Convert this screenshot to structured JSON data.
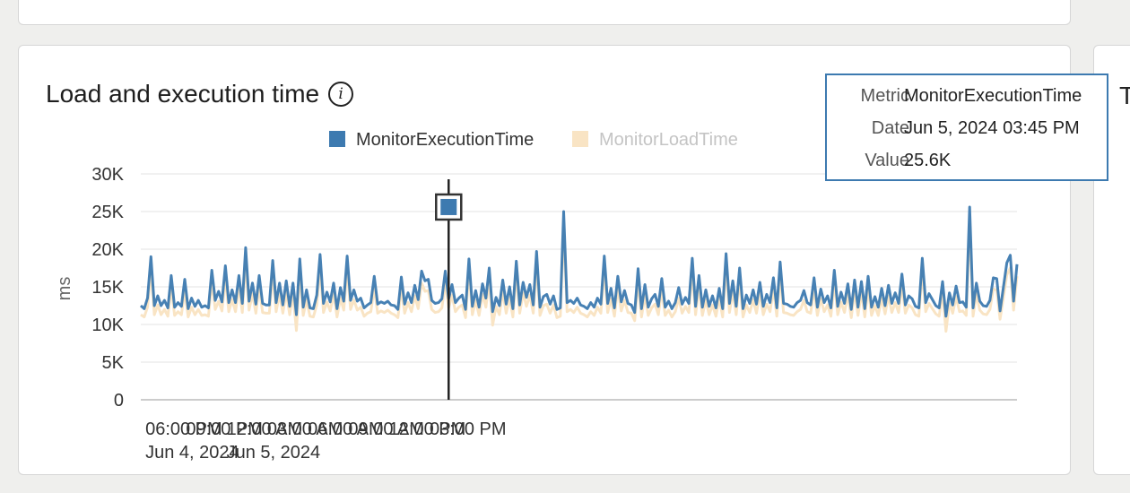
{
  "card": {
    "title": "Load and execution time",
    "info_icon": "info-icon",
    "right_card_peek": "T"
  },
  "tooltip": {
    "rows": [
      {
        "key": "Metric",
        "value": "MonitorExecutionTime"
      },
      {
        "key": "Date",
        "value": "Jun 5, 2024 03:45 PM"
      },
      {
        "key": "Value",
        "value": "25.6K"
      }
    ]
  },
  "chart_data": {
    "type": "line",
    "ylabel": "ms",
    "ylim": [
      0,
      30000
    ],
    "y_ticks": [
      0,
      5000,
      10000,
      15000,
      20000,
      25000,
      30000
    ],
    "y_tick_labels": [
      "0",
      "5K",
      "10K",
      "15K",
      "20K",
      "25K",
      "30K"
    ],
    "x_start": "2024-06-04T17:00",
    "x_interval_minutes": 15,
    "x_ticks": [
      {
        "time": "2024-06-04T18:00",
        "label": "06:00 PM",
        "sublabel": "Jun 4, 2024"
      },
      {
        "time": "2024-06-04T21:00",
        "label": "09:00 PM",
        "sublabel": ""
      },
      {
        "time": "2024-06-05T00:00",
        "label": "12:00 AM",
        "sublabel": "Jun 5, 2024"
      },
      {
        "time": "2024-06-05T03:00",
        "label": "03:00 AM",
        "sublabel": ""
      },
      {
        "time": "2024-06-05T06:00",
        "label": "06:00 AM",
        "sublabel": ""
      },
      {
        "time": "2024-06-05T09:00",
        "label": "09:00 AM",
        "sublabel": ""
      },
      {
        "time": "2024-06-05T12:00",
        "label": "12:00 PM",
        "sublabel": ""
      },
      {
        "time": "2024-06-05T15:00",
        "label": "03:00 PM",
        "sublabel": ""
      }
    ],
    "legend_position": "top-center",
    "grid": true,
    "highlight": {
      "series": "MonitorExecutionTime",
      "time": "2024-06-05T15:45",
      "value": 25600
    },
    "series": [
      {
        "name": "MonitorExecutionTime",
        "color": "#3d7ab0",
        "values": [
          12500,
          12100,
          13500,
          19000,
          12500,
          13800,
          12500,
          13200,
          12200,
          16500,
          12300,
          12900,
          12400,
          16000,
          12100,
          13500,
          12400,
          13200,
          12300,
          12500,
          12200,
          17200,
          13200,
          14400,
          13000,
          17800,
          12900,
          14600,
          12900,
          16500,
          12800,
          20200,
          13100,
          15500,
          12700,
          16500,
          12800,
          12600,
          12600,
          18500,
          12900,
          15500,
          12600,
          15800,
          12400,
          15500,
          11300,
          18700,
          12300,
          14600,
          12200,
          12100,
          13900,
          19300,
          12800,
          14300,
          13000,
          15500,
          12100,
          14900,
          13100,
          19100,
          13200,
          14600,
          13100,
          13500,
          12200,
          12600,
          12900,
          16400,
          12700,
          13000,
          12800,
          13100,
          12600,
          12500,
          12000,
          16300,
          12700,
          14200,
          12900,
          15200,
          13300,
          17100,
          15800,
          16000,
          13200,
          12800,
          12900,
          13400,
          17100,
          13400,
          15300,
          12900,
          13500,
          13900,
          12000,
          18700,
          12400,
          14500,
          12300,
          15400,
          13500,
          17500,
          11700,
          13600,
          12500,
          15900,
          12700,
          15000,
          12100,
          18400,
          12600,
          15600,
          13600,
          15300,
          12600,
          19700,
          12300,
          13700,
          14000,
          12700,
          13800,
          12000,
          12200,
          25000,
          12900,
          13200,
          12800,
          13500,
          12600,
          12400,
          12100,
          12900,
          12300,
          13500,
          12700,
          19100,
          12800,
          14800,
          12200,
          16400,
          13000,
          14500,
          12800,
          12600,
          11600,
          17400,
          12100,
          15300,
          12300,
          13400,
          14000,
          12400,
          16100,
          12300,
          13100,
          12100,
          12900,
          14900,
          12700,
          13600,
          12800,
          18800,
          12400,
          16500,
          12300,
          14600,
          12400,
          13800,
          12200,
          14800,
          12100,
          19400,
          12800,
          15800,
          12400,
          17500,
          12100,
          13900,
          12800,
          14600,
          12700,
          15600,
          12400,
          14000,
          12900,
          16200,
          12200,
          18300,
          12800,
          12700,
          12400,
          12300,
          12900,
          13200,
          14500,
          12900,
          12600,
          16200,
          12300,
          14700,
          12900,
          13800,
          12200,
          17200,
          12400,
          14300,
          12800,
          15400,
          12000,
          15900,
          12300,
          15700,
          12100,
          16400,
          12300,
          13700,
          12300,
          14800,
          12500,
          15200,
          12800,
          14200,
          12800,
          16700,
          12600,
          13800,
          13400,
          12400,
          12200,
          18800,
          12900,
          14100,
          13300,
          12500,
          12200,
          15700,
          11100,
          14200,
          12600,
          15100,
          12900,
          13000,
          12300,
          25600,
          12200,
          15500,
          13100,
          12500,
          12400,
          13200,
          16200,
          16100,
          11800,
          15000,
          18200,
          19200,
          13100,
          18000
        ]
      },
      {
        "name": "MonitorLoadTime",
        "color": "#f9e4c4",
        "values": [
          11300,
          11000,
          12300,
          17200,
          11300,
          12600,
          11300,
          12000,
          11100,
          15000,
          11200,
          11700,
          11300,
          14500,
          11000,
          12300,
          11300,
          12000,
          11200,
          11300,
          11100,
          15600,
          12000,
          13100,
          11800,
          16200,
          11700,
          13300,
          11700,
          15000,
          11600,
          18400,
          11900,
          14100,
          11500,
          15000,
          11600,
          11500,
          11500,
          16800,
          11700,
          14100,
          11500,
          14300,
          11300,
          14100,
          9200,
          17000,
          11200,
          13300,
          11100,
          11000,
          12600,
          17500,
          11600,
          13000,
          11800,
          14100,
          11000,
          13500,
          11900,
          17400,
          12000,
          13300,
          11900,
          12300,
          11100,
          11500,
          11700,
          14900,
          11500,
          11800,
          11600,
          11900,
          11500,
          11300,
          10900,
          14800,
          11500,
          12900,
          11700,
          13800,
          12100,
          15500,
          14400,
          14500,
          12000,
          11600,
          11700,
          12200,
          15500,
          12200,
          13900,
          11700,
          12300,
          12600,
          10900,
          17000,
          11300,
          13200,
          11200,
          14000,
          12300,
          15900,
          9900,
          12400,
          11300,
          14400,
          11500,
          13600,
          11000,
          16700,
          11500,
          14200,
          12400,
          13900,
          11500,
          17900,
          11200,
          12500,
          12700,
          11500,
          12600,
          10900,
          11100,
          22800,
          11700,
          12000,
          11600,
          12300,
          11500,
          11300,
          11000,
          11700,
          11200,
          12300,
          11500,
          17400,
          11600,
          13400,
          11100,
          14900,
          11800,
          13200,
          11600,
          11500,
          10500,
          15800,
          11000,
          13900,
          11200,
          12200,
          12700,
          11300,
          14600,
          11200,
          11900,
          11000,
          11700,
          13500,
          11500,
          12400,
          11600,
          17100,
          11300,
          15000,
          11200,
          13300,
          11300,
          12600,
          11100,
          13500,
          11000,
          17600,
          11600,
          14400,
          11300,
          15900,
          11000,
          12600,
          11600,
          13300,
          11500,
          14200,
          11300,
          12700,
          11700,
          14700,
          11100,
          16600,
          11600,
          11500,
          11300,
          11200,
          11700,
          12000,
          13200,
          11700,
          11500,
          14700,
          11200,
          13400,
          11700,
          12600,
          11100,
          15600,
          11300,
          13000,
          11600,
          14000,
          10900,
          14500,
          11200,
          14300,
          11000,
          14900,
          11200,
          12500,
          11200,
          13500,
          11400,
          13800,
          11600,
          12900,
          11600,
          15200,
          11500,
          12600,
          12200,
          11300,
          11100,
          17100,
          11700,
          12800,
          12100,
          11400,
          11100,
          14300,
          9100,
          12900,
          11500,
          13700,
          11700,
          11800,
          11200,
          23300,
          11100,
          14100,
          11900,
          11400,
          11300,
          12000,
          14700,
          14600,
          10700,
          13600,
          16600,
          17500,
          11900,
          16400
        ]
      }
    ]
  }
}
